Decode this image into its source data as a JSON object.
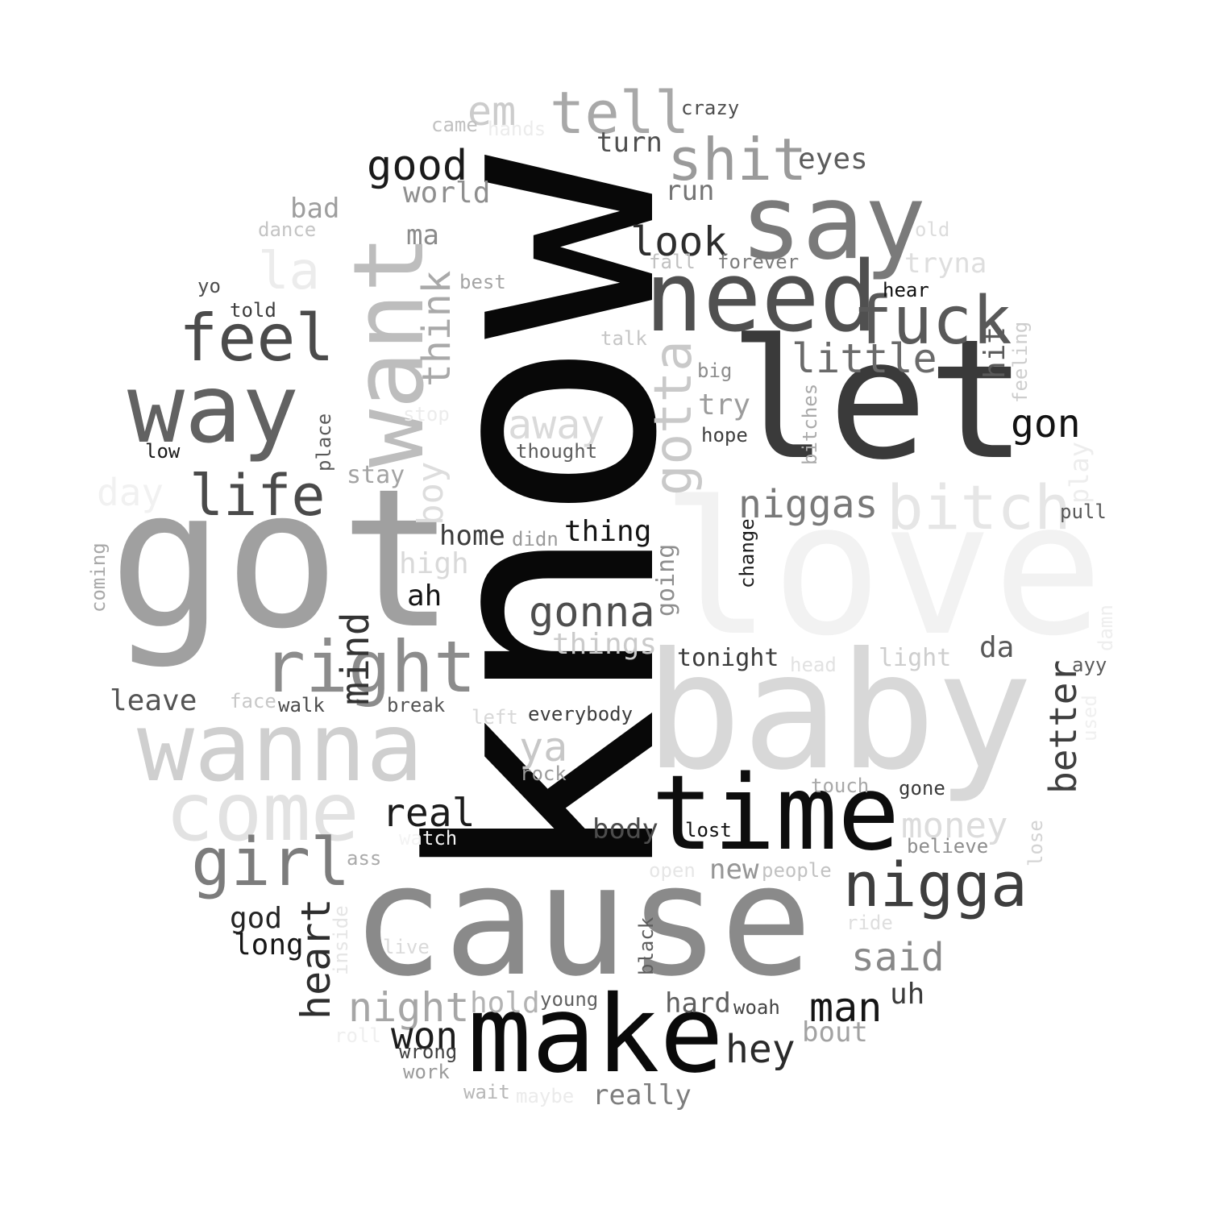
{
  "words": [
    {
      "text": "know",
      "color": "#080808",
      "vertical": true
    },
    {
      "text": "love",
      "color": "#f2f2f2",
      "vertical": false
    },
    {
      "text": "got",
      "color": "#a0a0a0",
      "vertical": false
    },
    {
      "text": "baby",
      "color": "#d8d8d8",
      "vertical": false
    },
    {
      "text": "cause",
      "color": "#8a8a8a",
      "vertical": false
    },
    {
      "text": "let",
      "color": "#3a3a3a",
      "vertical": false
    },
    {
      "text": "make",
      "color": "#0a0a0a",
      "vertical": false
    },
    {
      "text": "time",
      "color": "#0d0d0d",
      "vertical": false
    },
    {
      "text": "say",
      "color": "#7a7a7a",
      "vertical": false
    },
    {
      "text": "want",
      "color": "#bdbdbd",
      "vertical": true
    },
    {
      "text": "need",
      "color": "#505050",
      "vertical": false
    },
    {
      "text": "wanna",
      "color": "#cfcfcf",
      "vertical": false
    },
    {
      "text": "way",
      "color": "#626262",
      "vertical": false
    },
    {
      "text": "come",
      "color": "#e2e2e2",
      "vertical": false
    },
    {
      "text": "right",
      "color": "#8c8c8c",
      "vertical": false
    },
    {
      "text": "fuck",
      "color": "#595959",
      "vertical": false
    },
    {
      "text": "bitch",
      "color": "#e6e6e6",
      "vertical": false
    },
    {
      "text": "nigga",
      "color": "#3e3e3e",
      "vertical": false
    },
    {
      "text": "feel",
      "color": "#4b4b4b",
      "vertical": false
    },
    {
      "text": "girl",
      "color": "#7c7c7c",
      "vertical": false
    },
    {
      "text": "shit",
      "color": "#9a9a9a",
      "vertical": false
    },
    {
      "text": "tell",
      "color": "#a8a8a8",
      "vertical": false
    },
    {
      "text": "life",
      "color": "#4a4a4a",
      "vertical": false
    },
    {
      "text": "gotta",
      "color": "#c9c9c9",
      "vertical": true
    },
    {
      "text": "good",
      "color": "#1a1a1a",
      "vertical": false
    },
    {
      "text": "gonna",
      "color": "#4e4e4e",
      "vertical": false
    },
    {
      "text": "niggas",
      "color": "#797979",
      "vertical": false
    },
    {
      "text": "little",
      "color": "#6a6a6a",
      "vertical": false
    },
    {
      "text": "night",
      "color": "#a6a6a6",
      "vertical": false
    },
    {
      "text": "heart",
      "color": "#2e2e2e",
      "vertical": true
    },
    {
      "text": "real",
      "color": "#1b1b1b",
      "vertical": false
    },
    {
      "text": "look",
      "color": "#2d2d2d",
      "vertical": false
    },
    {
      "text": "think",
      "color": "#a9a9a9",
      "vertical": true
    },
    {
      "text": "mind",
      "color": "#333333",
      "vertical": true
    },
    {
      "text": "la",
      "color": "#ececec",
      "vertical": false
    },
    {
      "text": "em",
      "color": "#cccccc",
      "vertical": false
    },
    {
      "text": "away",
      "color": "#dadada",
      "vertical": false
    },
    {
      "text": "said",
      "color": "#888888",
      "vertical": false
    },
    {
      "text": "man",
      "color": "#151515",
      "vertical": false
    },
    {
      "text": "hey",
      "color": "#2a2a2a",
      "vertical": false
    },
    {
      "text": "money",
      "color": "#dcdcdc",
      "vertical": false
    },
    {
      "text": "better",
      "color": "#3f3f3f",
      "vertical": true
    },
    {
      "text": "gon",
      "color": "#121212",
      "vertical": false
    },
    {
      "text": "won",
      "color": "#1c1c1c",
      "vertical": false
    },
    {
      "text": "ya",
      "color": "#c7c7c7",
      "vertical": false
    },
    {
      "text": "day",
      "color": "#f1f1f1",
      "vertical": false
    },
    {
      "text": "boy",
      "color": "#dddddd",
      "vertical": true
    },
    {
      "text": "hold",
      "color": "#b3b3b3",
      "vertical": false
    },
    {
      "text": "world",
      "color": "#8f8f8f",
      "vertical": false
    },
    {
      "text": "home",
      "color": "#3c3c3c",
      "vertical": false
    },
    {
      "text": "thing",
      "color": "#141414",
      "vertical": false
    },
    {
      "text": "things",
      "color": "#cbcbcb",
      "vertical": false
    },
    {
      "text": "long",
      "color": "#161616",
      "vertical": false
    },
    {
      "text": "god",
      "color": "#242424",
      "vertical": false
    },
    {
      "text": "leave",
      "color": "#545454",
      "vertical": false
    },
    {
      "text": "high",
      "color": "#d9d9d9",
      "vertical": false
    },
    {
      "text": "eyes",
      "color": "#5c5c5c",
      "vertical": false
    },
    {
      "text": "turn",
      "color": "#4f4f4f",
      "vertical": false
    },
    {
      "text": "run",
      "color": "#757575",
      "vertical": false
    },
    {
      "text": "try",
      "color": "#9c9c9c",
      "vertical": false
    },
    {
      "text": "hard",
      "color": "#5e5e5e",
      "vertical": false
    },
    {
      "text": "bout",
      "color": "#a2a2a2",
      "vertical": false
    },
    {
      "text": "really",
      "color": "#7e7e7e",
      "vertical": false
    },
    {
      "text": "body",
      "color": "#4c4c4c",
      "vertical": false
    },
    {
      "text": "new",
      "color": "#969696",
      "vertical": false
    },
    {
      "text": "hit",
      "color": "#5a5a5a",
      "vertical": true
    },
    {
      "text": "ah",
      "color": "#151515",
      "vertical": false
    },
    {
      "text": "da",
      "color": "#585858",
      "vertical": false
    },
    {
      "text": "uh",
      "color": "#3b3b3b",
      "vertical": false
    },
    {
      "text": "bad",
      "color": "#9e9e9e",
      "vertical": false
    },
    {
      "text": "ma",
      "color": "#8b8b8b",
      "vertical": false
    },
    {
      "text": "stay",
      "color": "#a3a3a3",
      "vertical": false
    },
    {
      "text": "tryna",
      "color": "#dedede",
      "vertical": false
    },
    {
      "text": "going",
      "color": "#8e8e8e",
      "vertical": true
    },
    {
      "text": "light",
      "color": "#cecece",
      "vertical": false
    },
    {
      "text": "tonight",
      "color": "#3b3b3b",
      "vertical": false
    },
    {
      "text": "crazy",
      "color": "#4e4e4e",
      "vertical": false
    },
    {
      "text": "hear",
      "color": "#0f0f0f",
      "vertical": false
    },
    {
      "text": "play",
      "color": "#ededed",
      "vertical": true
    },
    {
      "text": "feeling",
      "color": "#cdcdcd",
      "vertical": true
    },
    {
      "text": "lost",
      "color": "#111111",
      "vertical": false
    },
    {
      "text": "believe",
      "color": "#8d8d8d",
      "vertical": false
    },
    {
      "text": "gone",
      "color": "#3a3a3a",
      "vertical": false
    },
    {
      "text": "touch",
      "color": "#a8a8a8",
      "vertical": false
    },
    {
      "text": "rock",
      "color": "#9b9b9b",
      "vertical": false
    },
    {
      "text": "break",
      "color": "#545454",
      "vertical": false
    },
    {
      "text": "walk",
      "color": "#4a4a4a",
      "vertical": false
    },
    {
      "text": "face",
      "color": "#c8c8c8",
      "vertical": false
    },
    {
      "text": "everybody",
      "color": "#3d3d3d",
      "vertical": false
    },
    {
      "text": "thought",
      "color": "#5d5d5d",
      "vertical": false
    },
    {
      "text": "hope",
      "color": "#3e3e3e",
      "vertical": false
    },
    {
      "text": "big",
      "color": "#8c8c8c",
      "vertical": false
    },
    {
      "text": "forever",
      "color": "#7c7c7c",
      "vertical": false
    },
    {
      "text": "fall",
      "color": "#c0c0c0",
      "vertical": false
    },
    {
      "text": "talk",
      "color": "#c6c6c6",
      "vertical": false
    },
    {
      "text": "best",
      "color": "#a4a4a4",
      "vertical": false
    },
    {
      "text": "told",
      "color": "#3c3c3c",
      "vertical": false
    },
    {
      "text": "yo",
      "color": "#4d4d4d",
      "vertical": false
    },
    {
      "text": "dance",
      "color": "#c4c4c4",
      "vertical": false
    },
    {
      "text": "came",
      "color": "#c1c1c1",
      "vertical": false
    },
    {
      "text": "hands",
      "color": "#ececec",
      "vertical": false
    },
    {
      "text": "old",
      "color": "#dcdcdc",
      "vertical": false
    },
    {
      "text": "low",
      "color": "#1a1a1a",
      "vertical": false
    },
    {
      "text": "place",
      "color": "#5a5a5a",
      "vertical": true
    },
    {
      "text": "stop",
      "color": "#ececec",
      "vertical": false
    },
    {
      "text": "coming",
      "color": "#a9a9a9",
      "vertical": true
    },
    {
      "text": "didn",
      "color": "#9b9b9b",
      "vertical": false
    },
    {
      "text": "left",
      "color": "#d8d8d8",
      "vertical": false
    },
    {
      "text": "change",
      "color": "#1c1c1c",
      "vertical": true
    },
    {
      "text": "bitches",
      "color": "#aaaaaa",
      "vertical": true
    },
    {
      "text": "pull",
      "color": "#575757",
      "vertical": false
    },
    {
      "text": "ayy",
      "color": "#5b5b5b",
      "vertical": false
    },
    {
      "text": "damn",
      "color": "#eeeeee",
      "vertical": true
    },
    {
      "text": "used",
      "color": "#f0f0f0",
      "vertical": true
    },
    {
      "text": "head",
      "color": "#e2e2e2",
      "vertical": false
    },
    {
      "text": "lose",
      "color": "#d3d3d3",
      "vertical": true
    },
    {
      "text": "people",
      "color": "#c2c2c2",
      "vertical": false
    },
    {
      "text": "open",
      "color": "#e6e6e6",
      "vertical": false
    },
    {
      "text": "ride",
      "color": "#dedede",
      "vertical": false
    },
    {
      "text": "black",
      "color": "#5c5c5c",
      "vertical": true
    },
    {
      "text": "woah",
      "color": "#444444",
      "vertical": false
    },
    {
      "text": "young",
      "color": "#616161",
      "vertical": false
    },
    {
      "text": "live",
      "color": "#dadada",
      "vertical": false
    },
    {
      "text": "inside",
      "color": "#e5e5e5",
      "vertical": true
    },
    {
      "text": "ass",
      "color": "#aaaaaa",
      "vertical": false
    },
    {
      "text": "watch",
      "color": "#f3f3f3",
      "vertical": false
    },
    {
      "text": "roll",
      "color": "#efefef",
      "vertical": false
    },
    {
      "text": "wrong",
      "color": "#3f3f3f",
      "vertical": false
    },
    {
      "text": "work",
      "color": "#9a9a9a",
      "vertical": false
    },
    {
      "text": "wait",
      "color": "#b7b7b7",
      "vertical": false
    },
    {
      "text": "maybe",
      "color": "#ebebeb",
      "vertical": false
    }
  ]
}
